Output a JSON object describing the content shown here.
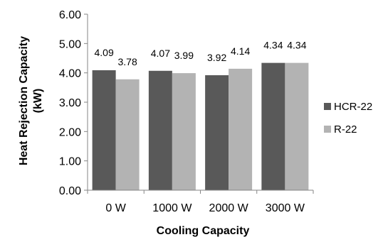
{
  "chart_data": {
    "type": "bar",
    "xlabel": "Cooling Capacity",
    "ylabel": "Heat Rejection Capacity (kW)",
    "ylabel_lines": [
      "Heat Rejection Capacity",
      "(kW)"
    ],
    "categories": [
      "0 W",
      "1000 W",
      "2000 W",
      "3000 W"
    ],
    "series": [
      {
        "name": "HCR-22",
        "values": [
          4.09,
          4.07,
          3.92,
          4.34
        ],
        "labels": [
          "4.09",
          "4.07",
          "3.92",
          "4.34"
        ],
        "color": "#595959"
      },
      {
        "name": "R-22",
        "values": [
          3.78,
          3.99,
          4.14,
          4.34
        ],
        "labels": [
          "3.78",
          "3.99",
          "4.14",
          "4.34"
        ],
        "color": "#b3b3b3"
      }
    ],
    "ylim": [
      0,
      6
    ],
    "yticks": [
      "0.00",
      "1.00",
      "2.00",
      "3.00",
      "4.00",
      "5.00",
      "6.00"
    ],
    "grid": false,
    "legend_position": "right"
  }
}
